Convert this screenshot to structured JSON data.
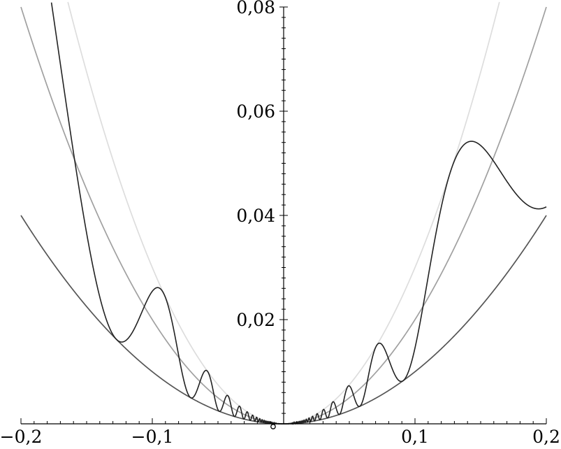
{
  "chart_data": {
    "type": "line",
    "title": "",
    "xlabel": "",
    "ylabel": "",
    "xlim": [
      -0.2,
      0.2
    ],
    "ylim": [
      0,
      0.08
    ],
    "x_ticks": [
      {
        "value": -0.2,
        "label": "−0,2"
      },
      {
        "value": -0.1,
        "label": "−0,1"
      },
      {
        "value": 0.1,
        "label": "0,1"
      },
      {
        "value": 0.2,
        "label": "0,2"
      }
    ],
    "y_ticks": [
      {
        "value": 0.02,
        "label": "0,02"
      },
      {
        "value": 0.04,
        "label": "0,04"
      },
      {
        "value": 0.06,
        "label": "0,06"
      },
      {
        "value": 0.08,
        "label": "0,08"
      }
    ],
    "grid": false,
    "legend": "none",
    "series": [
      {
        "color": "#555555",
        "formula": "y = x^2",
        "x": [
          -0.2,
          -0.15,
          -0.1,
          -0.05,
          0,
          0.05,
          0.1,
          0.15,
          0.2
        ],
        "y": [
          0.04,
          0.0225,
          0.01,
          0.0025,
          0,
          0.0025,
          0.01,
          0.0225,
          0.04
        ]
      },
      {
        "color": "#a0a0a0",
        "formula": "y = 2x^2",
        "x": [
          -0.2,
          -0.15,
          -0.1,
          -0.05,
          0,
          0.05,
          0.1,
          0.15,
          0.2
        ],
        "y": [
          0.08,
          0.045,
          0.02,
          0.005,
          0,
          0.005,
          0.02,
          0.045,
          0.08
        ]
      },
      {
        "color": "#dddddd",
        "formula": "y = 3x^2",
        "x": [
          -0.163,
          -0.15,
          -0.1,
          -0.05,
          0,
          0.05,
          0.1,
          0.15,
          0.163
        ],
        "y": [
          0.08,
          0.0675,
          0.03,
          0.0075,
          0,
          0.0075,
          0.03,
          0.0675,
          0.08
        ]
      },
      {
        "color": "#222222",
        "formula": "y = x^2 (2 + sin(1/x))",
        "x": [
          -0.175,
          -0.158,
          -0.14,
          -0.125,
          -0.11,
          -0.096,
          -0.085,
          -0.075,
          -0.068,
          -0.061,
          -0.054,
          -0.047,
          -0.04,
          -0.03,
          -0.02,
          -0.01,
          0,
          0.01,
          0.02,
          0.03,
          0.04,
          0.047,
          0.055,
          0.062,
          0.075,
          0.092,
          0.11,
          0.125,
          0.143,
          0.16,
          0.18,
          0.2
        ],
        "y": [
          0.08,
          0.052,
          0.024,
          0.0158,
          0.021,
          0.026,
          0.017,
          0.0055,
          0.0065,
          0.01,
          0.0055,
          0.0035,
          0.0045,
          0.0025,
          0.001,
          0.0003,
          0,
          0.0003,
          0.001,
          0.0025,
          0.0045,
          0.0035,
          0.007,
          0.004,
          0.0155,
          0.0085,
          0.023,
          0.046,
          0.054,
          0.05,
          0.043,
          0.0415
        ]
      }
    ],
    "annotations": [
      {
        "type": "open-circle",
        "x": -0.008,
        "y": 0
      }
    ]
  }
}
